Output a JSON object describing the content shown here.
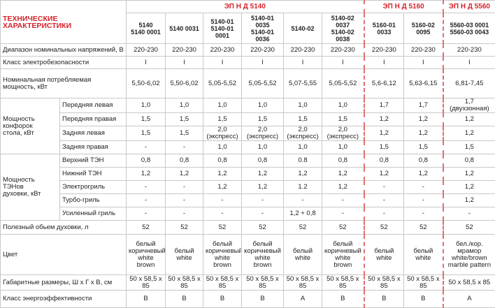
{
  "title": "ТЕХНИЧЕСКИЕ ХАРАКТЕРИСТИКИ",
  "groups": [
    "ЭП Н Д 5140",
    "ЭП Н Д 5160",
    "ЭП Н Д 5560"
  ],
  "models": [
    "5140\n5140 0001",
    "5140 0031",
    "5140-01\n5140-01 0001",
    "5140-01 0035\n5140-01 0036",
    "5140-02",
    "5140-02 0037\n5140-02 0038",
    "5160-01 0033",
    "5160-02 0095",
    "5560-03 0001\n5560-03 0043"
  ],
  "rows": [
    {
      "label": "Диапазон номинальных напряжений, В",
      "values": [
        "220-230",
        "220-230",
        "220-230",
        "220-230",
        "220-230",
        "220-230",
        "220-230",
        "220-230",
        "220-230"
      ]
    },
    {
      "label": "Класс электробезопасности",
      "values": [
        "I",
        "I",
        "I",
        "I",
        "I",
        "I",
        "I",
        "I",
        "I"
      ]
    },
    {
      "label": "Номинальная потребляемая\nмощность, кВт",
      "values": [
        "5,50-6,02",
        "5,50-6,02",
        "5,05-5,52",
        "5,05-5,52",
        "5,07-5,55",
        "5,05-5,52",
        "5,6-6,12",
        "5,63-6,15",
        "6,81-7,45"
      ]
    },
    {
      "label": "Мощность\nконфорок\nстола, кВт",
      "subrows": [
        {
          "label": "Передняя левая",
          "values": [
            "1,0",
            "1,0",
            "1,0",
            "1,0",
            "1,0",
            "1,0",
            "1,7",
            "1,7",
            "1,7 (двухзонная)"
          ]
        },
        {
          "label": "Передняя правая",
          "values": [
            "1,5",
            "1,5",
            "1,5",
            "1,5",
            "1,5",
            "1,5",
            "1,2",
            "1,2",
            "1,2"
          ]
        },
        {
          "label": "Задняя левая",
          "values": [
            "1,5",
            "1,5",
            "2,0 (экспресс)",
            "2,0 (экспресс)",
            "2,0 (экспресс)",
            "2,0 (экспресс)",
            "1,2",
            "1,2",
            "1,2"
          ]
        },
        {
          "label": "Задняя правая",
          "values": [
            "-",
            "-",
            "1,0",
            "1,0",
            "1,0",
            "1,0",
            "1,5",
            "1,5",
            "1,5"
          ]
        }
      ]
    },
    {
      "label": "Мощность\nТЭНов\nдуховки, кВт",
      "subrows": [
        {
          "label": "Верхний ТЭН",
          "values": [
            "0,8",
            "0,8",
            "0,8",
            "0,8",
            "0.8",
            "0,8",
            "0,8",
            "0,8",
            "0,8"
          ]
        },
        {
          "label": "Нижний ТЭН",
          "values": [
            "1,2",
            "1,2",
            "1,2",
            "1,2",
            "1,2",
            "1,2",
            "1,2",
            "1,2",
            "1,2"
          ]
        },
        {
          "label": "Электрогриль",
          "values": [
            "-",
            "-",
            "1,2",
            "1,2",
            "1.2",
            "1,2",
            "-",
            "-",
            "1,2"
          ]
        },
        {
          "label": "Турбо-гриль",
          "values": [
            "-",
            "-",
            "-",
            "-",
            "-",
            "-",
            "-",
            "-",
            "1,2"
          ]
        },
        {
          "label": "Усиленный гриль",
          "values": [
            "-",
            "-",
            "-",
            "-",
            "1,2 + 0,8",
            "-",
            "-",
            "-",
            "-"
          ]
        }
      ]
    },
    {
      "label": "Полезный обьем духовки, л",
      "values": [
        "52",
        "52",
        "52",
        "52",
        "52",
        "52",
        "52",
        "52",
        "52"
      ]
    },
    {
      "label": "Цвет",
      "values": [
        "белый\nкоричневый\nwhite\nbrown",
        "белый\nwhite",
        "белый\nкоричневый\nwhite\nbrown",
        "белый\nкоричневый\nwhite\nbrown",
        "белый\nwhite",
        "белый\nкоричневый\nwhite\nbrown",
        "белый\nwhite",
        "белый\nwhite",
        "бел./кор. мрамор\nwhite/brown\nmarble pattern"
      ]
    },
    {
      "label": "Габаритные размеры, Ш х Г х В, см",
      "values": [
        "50 х 58,5 х 85",
        "50 х 58,5 х 85",
        "50 х 58,5 х 85",
        "50 х 58,5 х 85",
        "50 х 58,5 х 85",
        "50 х 58,5 х 85",
        "50 х 58,5 х 85",
        "50 х 58,5 х 85",
        "50 х 58,5 х 85"
      ]
    },
    {
      "label": "Класс энергоэффективности",
      "values": [
        "B",
        "B",
        "B",
        "B",
        "A",
        "B",
        "B",
        "B",
        "A"
      ]
    }
  ]
}
